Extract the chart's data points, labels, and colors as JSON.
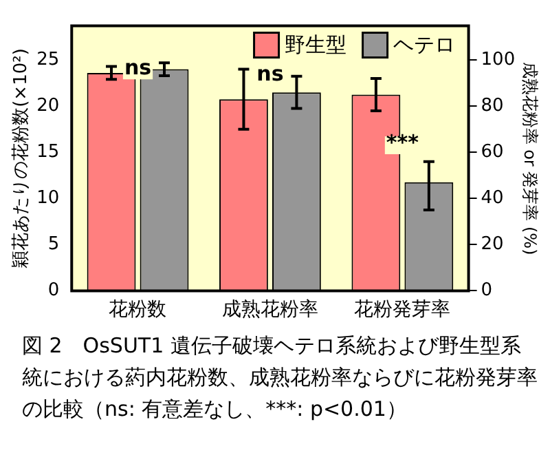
{
  "chart_data": {
    "type": "bar",
    "categories": [
      "花粉数",
      "成熟花粉率",
      "花粉発芽率"
    ],
    "ylabel": "穎花あたりの花粉数(×10²)",
    "y2label": "成熟花粉率 or 発芽率 (%)",
    "ylim": [
      0,
      28.7
    ],
    "yticks": [
      0,
      5,
      10,
      15,
      20,
      25
    ],
    "y2lim": [
      0,
      114.8
    ],
    "y2ticks": [
      0,
      20,
      40,
      60,
      80,
      100
    ],
    "series": [
      {
        "name": "野生型",
        "color": "#ff7f7f",
        "values": [
          23.6,
          null,
          null
        ],
        "errors": [
          0.7,
          null,
          null
        ]
      },
      {
        "name": "ヘテロ",
        "color": "#969696",
        "values": [
          24.0,
          null,
          null
        ],
        "errors": [
          0.7,
          null,
          null
        ]
      },
      {
        "color": "#ff7f7f",
        "axis": "y2",
        "values": [
          null,
          83,
          85
        ],
        "errors": [
          null,
          [
            70,
            96
          ],
          7
        ]
      },
      {
        "color": "#969696",
        "axis": "y2",
        "values": [
          null,
          86,
          47
        ],
        "errors": [
          null,
          7,
          [
            35,
            56
          ]
        ]
      }
    ],
    "legend": "top right",
    "grid": false,
    "annotations": [
      "ns",
      "ns",
      {
        "text": "***",
        "x": "花粉発芽率",
        "y": 14.8
      },
      "図 2　OsSUT1 遺伝子破壊ヘテロ系統および野生型系統における葯内花粉数、成熟花粉率ならびに花粉発芽率の比較（ns: 有意差なし、***: p<0.01）"
    ]
  }
}
